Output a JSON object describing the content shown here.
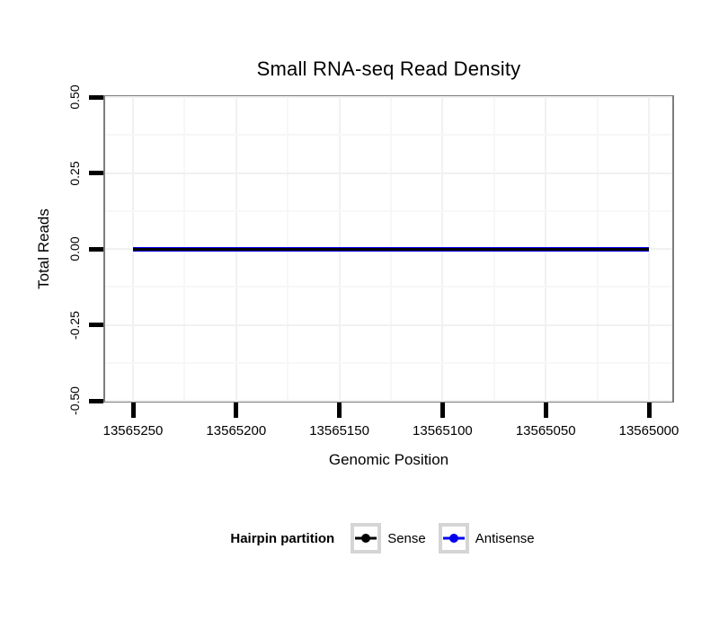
{
  "chart_data": {
    "type": "line",
    "title": "Small RNA-seq Read Density",
    "xlabel": "Genomic Position",
    "ylabel": "Total Reads",
    "x_ticks": [
      13565250,
      13565200,
      13565150,
      13565100,
      13565050,
      13565000
    ],
    "x_tick_labels": [
      "13565250",
      "13565200",
      "13565150",
      "13565100",
      "13565050",
      "13565000"
    ],
    "x_axis_reversed": true,
    "xlim": [
      13565250,
      13565000
    ],
    "y_ticks": [
      0.5,
      0.25,
      0,
      -0.25,
      -0.5
    ],
    "y_tick_labels": [
      "0.50",
      "0.25",
      "0.00",
      "-0.25",
      "-0.50"
    ],
    "ylim": [
      -0.5,
      0.5
    ],
    "grid": "on",
    "panel_border_color": "#7d7d7d",
    "series": [
      {
        "name": "Sense",
        "color": "#000000",
        "x": [
          13565250,
          13565000
        ],
        "y": [
          0,
          0
        ]
      },
      {
        "name": "Antisense",
        "color": "#0000ee",
        "x": [
          13565250,
          13565000
        ],
        "y": [
          0,
          0
        ]
      }
    ],
    "legend": {
      "title": "Hairpin partition",
      "position": "bottom",
      "entries": [
        {
          "label": "Sense",
          "color": "#000000"
        },
        {
          "label": "Antisense",
          "color": "#0000ee"
        }
      ]
    }
  }
}
